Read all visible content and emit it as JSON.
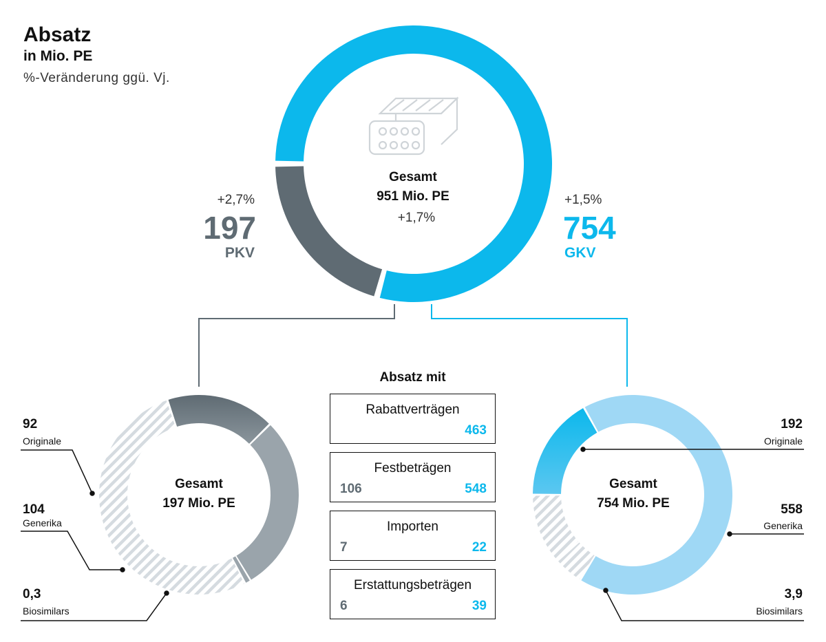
{
  "header": {
    "title": "Absatz",
    "unit": "in Mio. PE",
    "note": "%-Veränderung ggü. Vj."
  },
  "colors": {
    "gkv": "#0cb8ec",
    "gkv_light": "#9fd8f5",
    "pkv": "#5f6b73",
    "pkv_light": "#9aa4ab",
    "hatch": "#d5dbe0"
  },
  "chart_data": [
    {
      "type": "pie",
      "name": "total",
      "center_label": "Gesamt",
      "center_value": "951 Mio. PE",
      "center_change": "+1,7%",
      "slices": [
        {
          "label": "GKV",
          "value": 754,
          "value_text": "754",
          "change": "+1,5%"
        },
        {
          "label": "PKV",
          "value": 197,
          "value_text": "197",
          "change": "+2,7%"
        }
      ]
    },
    {
      "type": "pie",
      "name": "pkv",
      "center_label": "Gesamt",
      "center_value": "197 Mio. PE",
      "slices": [
        {
          "label": "Originale",
          "value": 92,
          "value_text": "92"
        },
        {
          "label": "Generika",
          "value": 104,
          "value_text": "104"
        },
        {
          "label": "Biosimilars",
          "value": 0.3,
          "value_text": "0,3"
        }
      ]
    },
    {
      "type": "pie",
      "name": "gkv",
      "center_label": "Gesamt",
      "center_value": "754 Mio. PE",
      "slices": [
        {
          "label": "Originale",
          "value": 192,
          "value_text": "192"
        },
        {
          "label": "Generika",
          "value": 558,
          "value_text": "558"
        },
        {
          "label": "Biosimilars",
          "value": 3.9,
          "value_text": "3,9"
        }
      ]
    },
    {
      "type": "table",
      "title": "Absatz mit",
      "rows": [
        {
          "label": "Rabattverträgen",
          "pkv": "",
          "gkv": "463"
        },
        {
          "label": "Festbeträgen",
          "pkv": "106",
          "gkv": "548"
        },
        {
          "label": "Importen",
          "pkv": "7",
          "gkv": "22"
        },
        {
          "label": "Erstattungsbeträgen",
          "pkv": "6",
          "gkv": "39"
        }
      ]
    }
  ]
}
